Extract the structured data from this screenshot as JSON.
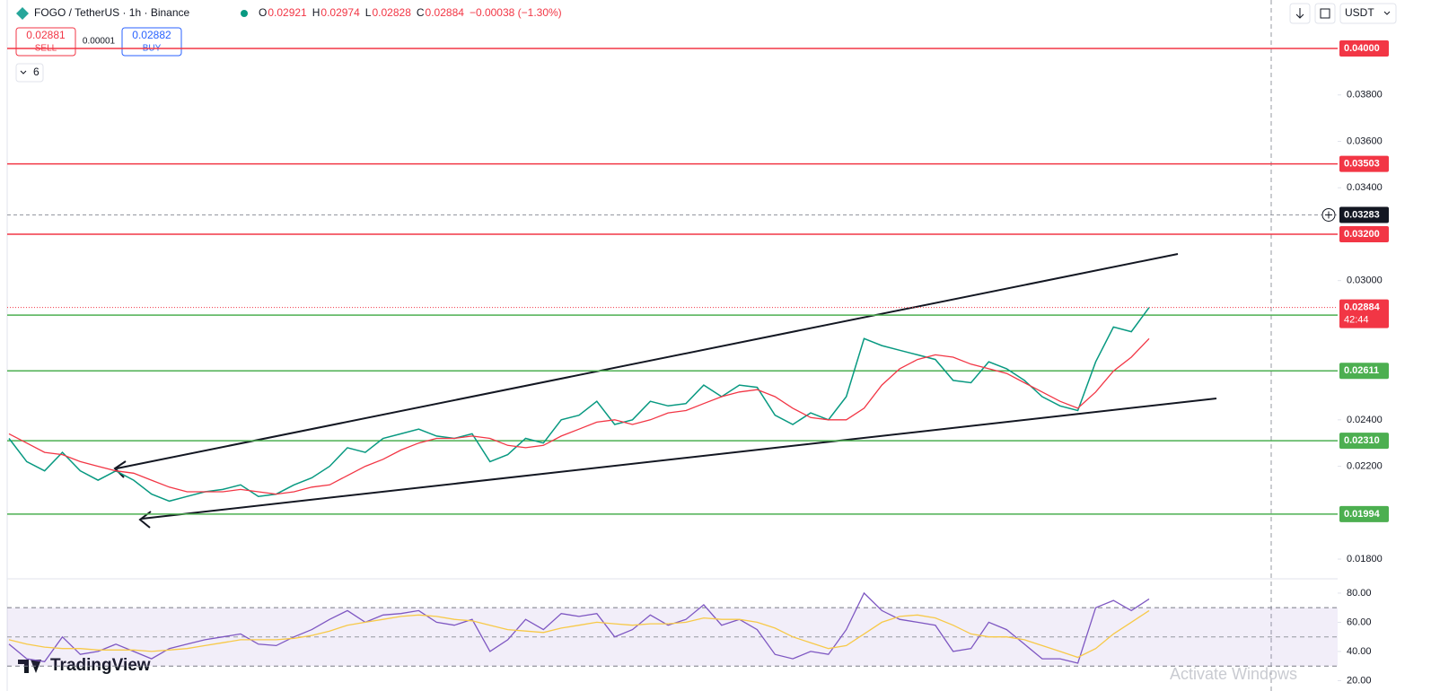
{
  "header": {
    "symbol": "FOGO / TetherUS · 1h · Binance",
    "ohlc": [
      {
        "key": "O",
        "value": "0.02921"
      },
      {
        "key": "H",
        "value": "0.02974"
      },
      {
        "key": "L",
        "value": "0.02828"
      },
      {
        "key": "C",
        "value": "0.02884"
      }
    ],
    "change": "−0.00038 (−1.30%)",
    "sell_price": "0.02881",
    "sell": "SELL",
    "spread": "0.00001",
    "buy_price": "0.02882",
    "buy": "BUY",
    "indicators": "6",
    "currency": "USDT",
    "brand": "TradingView",
    "watermark": "Activate Windows"
  },
  "chart_data": [
    {
      "type": "line",
      "ylim": [
        0.01715,
        0.04209
      ],
      "yticks": [
        {
          "value": 0.038,
          "label": "0.03800"
        },
        {
          "value": 0.036,
          "label": "0.03600"
        },
        {
          "value": 0.034,
          "label": "0.03400"
        },
        {
          "value": 0.03,
          "label": "0.03000"
        },
        {
          "value": 0.024,
          "label": "0.02400"
        },
        {
          "value": 0.022,
          "label": "0.02200"
        },
        {
          "value": 0.018,
          "label": "0.01800"
        }
      ],
      "series": [
        {
          "color": "#089981",
          "values": [
            0.0232,
            0.0222,
            0.0218,
            0.0226,
            0.0218,
            0.0214,
            0.0218,
            0.0214,
            0.0208,
            0.0205,
            0.0207,
            0.0209,
            0.021,
            0.0212,
            0.0207,
            0.0208,
            0.0212,
            0.0215,
            0.022,
            0.0228,
            0.0226,
            0.0232,
            0.0234,
            0.0236,
            0.0233,
            0.0232,
            0.0234,
            0.0222,
            0.0225,
            0.0232,
            0.023,
            0.024,
            0.0242,
            0.0248,
            0.0238,
            0.024,
            0.0248,
            0.0246,
            0.0247,
            0.0255,
            0.025,
            0.0255,
            0.0254,
            0.0242,
            0.0238,
            0.0243,
            0.024,
            0.025,
            0.0275,
            0.0272,
            0.027,
            0.0268,
            0.0266,
            0.0257,
            0.0256,
            0.0265,
            0.0262,
            0.0257,
            0.025,
            0.0246,
            0.0244,
            0.0265,
            0.028,
            0.0278,
            0.02884
          ]
        },
        {
          "color": "#f23645",
          "values": [
            0.0234,
            0.023,
            0.0226,
            0.0225,
            0.0222,
            0.022,
            0.0218,
            0.0217,
            0.0214,
            0.0211,
            0.0209,
            0.0209,
            0.0209,
            0.021,
            0.0209,
            0.0208,
            0.0209,
            0.0211,
            0.0212,
            0.0216,
            0.022,
            0.0223,
            0.0227,
            0.023,
            0.0232,
            0.0232,
            0.0233,
            0.0232,
            0.0229,
            0.0228,
            0.0229,
            0.0233,
            0.0236,
            0.0239,
            0.024,
            0.0238,
            0.024,
            0.0243,
            0.0244,
            0.0247,
            0.025,
            0.0252,
            0.0253,
            0.025,
            0.0245,
            0.0241,
            0.024,
            0.024,
            0.0245,
            0.0255,
            0.0262,
            0.0266,
            0.0268,
            0.0267,
            0.0264,
            0.0262,
            0.026,
            0.0256,
            0.0252,
            0.0248,
            0.0245,
            0.0252,
            0.0261,
            0.0267,
            0.0275
          ]
        }
      ],
      "levels": [
        {
          "value": 0.04,
          "label": "0.04000",
          "color": "#f23645"
        },
        {
          "value": 0.03503,
          "label": "0.03503",
          "color": "#f23645"
        },
        {
          "value": 0.032,
          "label": "0.03200",
          "color": "#f23645"
        },
        {
          "value": 0.028515,
          "color": "#4caf50"
        },
        {
          "value": 0.02611,
          "label": "0.02611",
          "color": "#4caf50"
        },
        {
          "value": 0.0231,
          "label": "0.02310",
          "color": "#4caf50"
        },
        {
          "value": 0.01994,
          "label": "0.01994",
          "color": "#4caf50"
        }
      ],
      "high_line": {
        "value": 0.03283,
        "label": "0.03283"
      },
      "last": {
        "value": 0.02884,
        "label": "0.02884",
        "countdown": "42:44",
        "color": "#f23645"
      }
    },
    {
      "type": "line",
      "ylim": [
        12.9,
        89.8
      ],
      "yticks": [
        {
          "value": 80,
          "label": "80.00"
        },
        {
          "value": 60,
          "label": "60.00"
        },
        {
          "value": 40,
          "label": "40.00"
        },
        {
          "value": 20,
          "label": "20.00"
        }
      ],
      "band": [
        30,
        70
      ],
      "midline": 50,
      "series": [
        {
          "color": "#7e57c2",
          "values": [
            45,
            35,
            33,
            50,
            38,
            40,
            45,
            40,
            35,
            42,
            45,
            48,
            50,
            52,
            45,
            44,
            50,
            55,
            62,
            68,
            60,
            65,
            66,
            68,
            60,
            58,
            62,
            40,
            48,
            62,
            55,
            66,
            64,
            66,
            50,
            55,
            65,
            58,
            62,
            72,
            58,
            62,
            55,
            38,
            35,
            40,
            38,
            55,
            80,
            68,
            62,
            60,
            58,
            40,
            42,
            60,
            55,
            45,
            35,
            35,
            32,
            70,
            75,
            68,
            76
          ]
        },
        {
          "color": "#f7c948",
          "values": [
            48,
            45,
            43,
            42,
            42,
            41,
            41,
            41,
            40,
            41,
            42,
            44,
            46,
            48,
            48,
            48,
            49,
            51,
            54,
            58,
            60,
            62,
            64,
            65,
            64,
            62,
            61,
            58,
            55,
            54,
            53,
            56,
            58,
            60,
            59,
            58,
            59,
            59,
            60,
            63,
            62,
            62,
            60,
            56,
            50,
            46,
            42,
            44,
            52,
            60,
            64,
            65,
            63,
            58,
            52,
            50,
            50,
            48,
            44,
            40,
            36,
            42,
            52,
            60,
            68
          ]
        }
      ]
    }
  ]
}
